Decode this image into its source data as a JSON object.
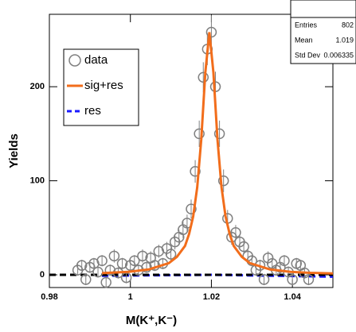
{
  "chart_data": {
    "type": "scatter",
    "x_label": "M(K⁺,K⁻)",
    "y_label": "Yields",
    "xlim": [
      0.98,
      1.05
    ],
    "ylim": [
      -13.5,
      277
    ],
    "xticks": [
      0.98,
      1,
      1.02,
      1.04
    ],
    "yticks": [
      0,
      100,
      200
    ],
    "legend_position": "upper-left",
    "stats": [
      {
        "name": "Entries",
        "value": "802"
      },
      {
        "name": "Mean",
        "value": "1.019"
      },
      {
        "name": "Std Dev",
        "value": "0.006335"
      }
    ],
    "series": [
      {
        "name": "data",
        "kind": "points",
        "color": "#808080",
        "x": [
          0.987,
          0.988,
          0.989,
          0.99,
          0.991,
          0.992,
          0.993,
          0.994,
          0.995,
          0.996,
          0.997,
          0.998,
          0.999,
          1.0,
          1.001,
          1.002,
          1.003,
          1.004,
          1.005,
          1.006,
          1.007,
          1.008,
          1.009,
          1.01,
          1.011,
          1.012,
          1.013,
          1.014,
          1.015,
          1.016,
          1.017,
          1.018,
          1.019,
          1.02,
          1.021,
          1.022,
          1.023,
          1.024,
          1.025,
          1.026,
          1.027,
          1.028,
          1.029,
          1.03,
          1.031,
          1.032,
          1.033,
          1.034,
          1.035,
          1.036,
          1.037,
          1.038,
          1.039,
          1.04,
          1.041,
          1.042,
          1.043,
          1.044
        ],
        "values": [
          5,
          10,
          -5,
          8,
          12,
          3,
          15,
          -8,
          5,
          20,
          2,
          12,
          -3,
          10,
          15,
          5,
          20,
          8,
          18,
          10,
          25,
          12,
          28,
          22,
          35,
          40,
          48,
          55,
          70,
          110,
          150,
          210,
          240,
          258,
          200,
          150,
          100,
          60,
          40,
          45,
          35,
          30,
          20,
          15,
          5,
          10,
          -5,
          18,
          12,
          5,
          8,
          15,
          3,
          -5,
          12,
          10,
          2,
          -5
        ],
        "errors": [
          6,
          6,
          6,
          6,
          6,
          6,
          6,
          6,
          6,
          7,
          6,
          6,
          6,
          6,
          6,
          6,
          7,
          6,
          7,
          6,
          7,
          6,
          7,
          7,
          8,
          8,
          9,
          9,
          10,
          12,
          14,
          16,
          17,
          18,
          16,
          14,
          12,
          9,
          8,
          8,
          8,
          7,
          7,
          6,
          6,
          6,
          6,
          7,
          6,
          6,
          6,
          6,
          6,
          6,
          6,
          6,
          6,
          6
        ]
      },
      {
        "name": "sig+res",
        "kind": "line",
        "color": "#f26d1b",
        "x": [
          0.993,
          0.9995,
          1.0045,
          1.0095,
          1.0115,
          1.0135,
          1.0145,
          1.0155,
          1.0165,
          1.0175,
          1.0185,
          1.0195,
          1.0205,
          1.0215,
          1.0225,
          1.0235,
          1.0245,
          1.0255,
          1.0275,
          1.0295,
          1.0345,
          1.0395,
          1.0445,
          1.05
        ],
        "values": [
          1.8,
          3.2,
          5.7,
          12.4,
          19.2,
          30.8,
          43.5,
          62,
          93,
          144,
          215,
          258,
          215,
          144,
          93,
          62,
          43.5,
          30.8,
          19.2,
          12.4,
          5.7,
          3.2,
          2.1,
          1.5
        ]
      },
      {
        "name": "res",
        "kind": "dashed",
        "color": "#1a1aff",
        "x": [
          0.993,
          1.02,
          1.05
        ],
        "values": [
          -1,
          0,
          -2
        ]
      },
      {
        "kind": "dashed",
        "color": "#000000",
        "x": [
          0.98,
          1.05
        ],
        "values": [
          0,
          0
        ]
      }
    ]
  }
}
